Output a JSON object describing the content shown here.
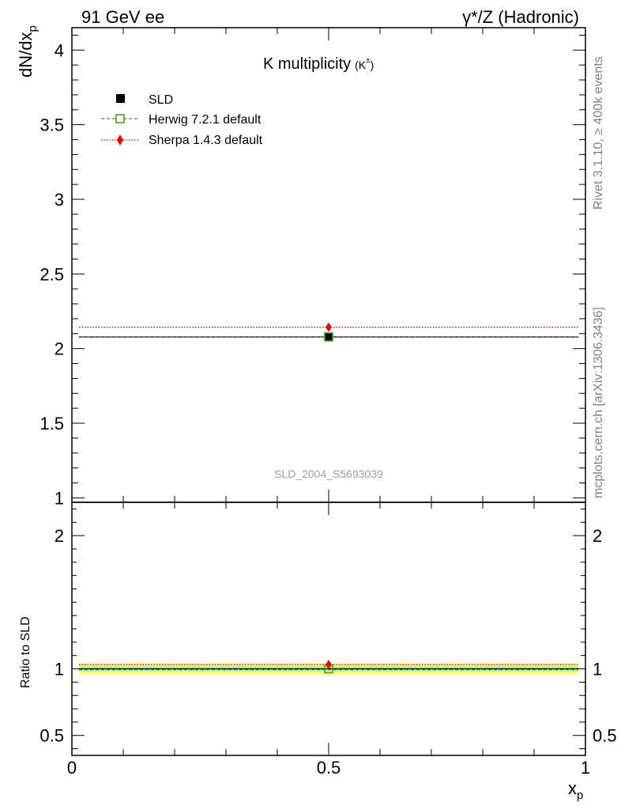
{
  "header": {
    "left": "91 GeV ee",
    "right": "γ*/Z (Hadronic)"
  },
  "side_notes": {
    "rivet": "Rivet 3.1.10, ≥ 400k events",
    "mcplots": "mcplots.cern.ch [arXiv:1306.3436]"
  },
  "chart_data": [
    {
      "type": "scatter",
      "title": "K multiplicity",
      "title_suffix": "(K",
      "title_sup": "±",
      "title_close": ")",
      "ylabel": "dN/dx",
      "ylabel_sub": "p",
      "watermark": "SLD_2004_S5693039",
      "xlim": [
        0,
        1
      ],
      "ylim": [
        0.97,
        4.15
      ],
      "y_ticks": [
        "1",
        "1.5",
        "2",
        "2.5",
        "3",
        "3.5",
        "4"
      ],
      "y_tick_values": [
        1,
        1.5,
        2,
        2.5,
        3,
        3.5,
        4
      ],
      "series": [
        {
          "name": "SLD",
          "style": "data",
          "color": "#000000",
          "x": [
            0.5
          ],
          "xerr": [
            0.5
          ],
          "y": [
            2.078
          ],
          "yerr": [
            0.02
          ]
        },
        {
          "name": "Herwig 7.2.1 default",
          "style": "dashed",
          "color": "#3f9a1a",
          "x": [
            0.5
          ],
          "y": [
            2.078
          ]
        },
        {
          "name": "Sherpa 1.4.3 default",
          "style": "dotted",
          "color": "#ee0000",
          "x": [
            0.5
          ],
          "y": [
            2.143
          ]
        }
      ],
      "legend_position": "top-left"
    },
    {
      "type": "scatter",
      "ylabel": "Ratio to SLD",
      "xlabel": "x",
      "xlabel_sub": "p",
      "xlim": [
        0,
        1
      ],
      "ylim": [
        0.35,
        2.25
      ],
      "x_ticks": [
        "0",
        "0.5",
        "1"
      ],
      "x_tick_values": [
        0,
        0.5,
        1
      ],
      "y_ticks": [
        "0.5",
        "1",
        "2"
      ],
      "y_tick_values": [
        0.5,
        1,
        2
      ],
      "bands": [
        {
          "color": "#ffff88",
          "low": 0.955,
          "high": 1.045
        },
        {
          "color": "#b2f0a0",
          "low": 0.98,
          "high": 1.02
        }
      ],
      "series": [
        {
          "name": "SLD",
          "style": "data",
          "color": "#000000",
          "x": [
            0.5
          ],
          "y": [
            1.0
          ]
        },
        {
          "name": "Herwig 7.2.1 default",
          "style": "dashed",
          "color": "#3f9a1a",
          "x": [
            0.5
          ],
          "y": [
            1.0
          ]
        },
        {
          "name": "Sherpa 1.4.3 default",
          "style": "dotted",
          "color": "#ee0000",
          "x": [
            0.5
          ],
          "y": [
            1.031
          ]
        }
      ]
    }
  ]
}
